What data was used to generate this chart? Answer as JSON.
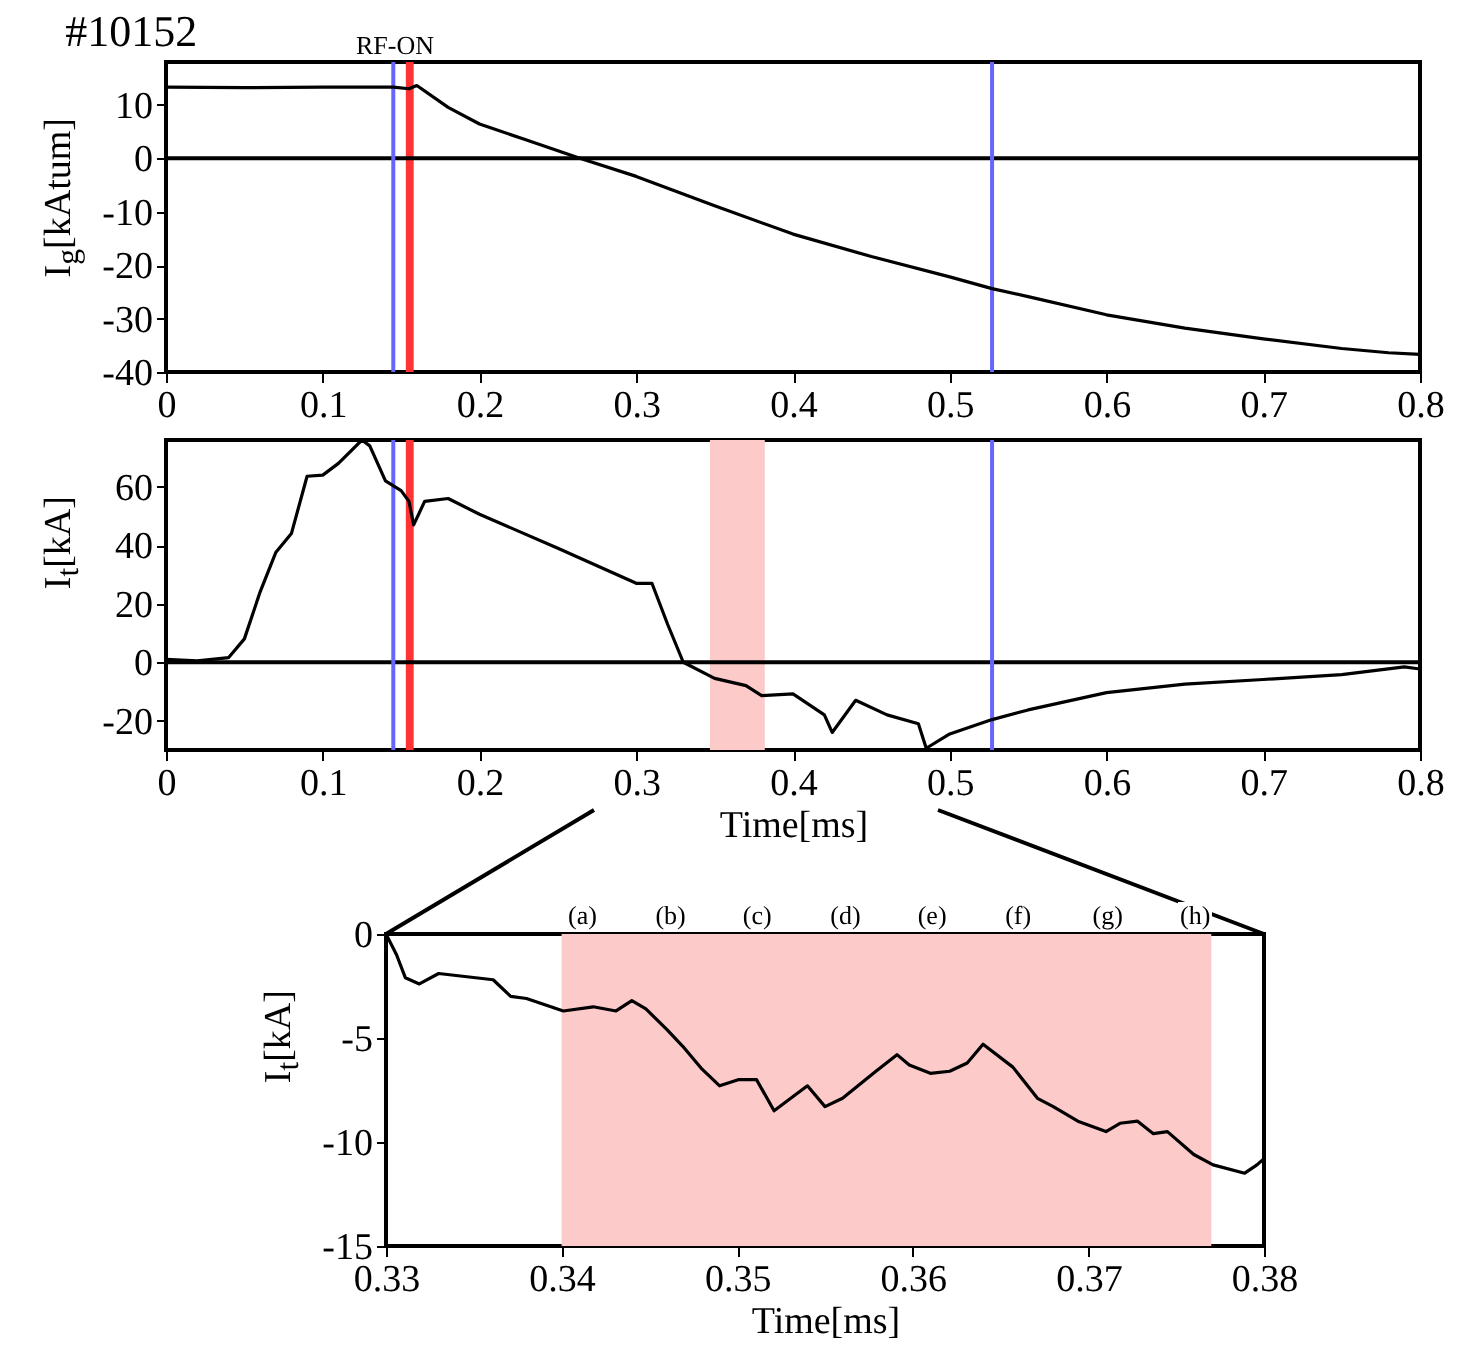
{
  "chart_data": [
    {
      "type": "line",
      "title": "#10152",
      "ylabel": "I$_{g}$[kAtum]",
      "xlim": [
        0,
        0.8
      ],
      "ylim": [
        -40,
        18
      ],
      "xticks": [
        0,
        0.1,
        0.2,
        0.3,
        0.4,
        0.5,
        0.6,
        0.7,
        0.8
      ],
      "yticks": [
        -40,
        -30,
        -20,
        -10,
        0,
        10
      ],
      "series": [
        {
          "color": "#000000",
          "x": [
            0,
            0.05,
            0.1,
            0.145,
            0.155,
            0.16,
            0.18,
            0.2,
            0.23,
            0.264,
            0.3,
            0.35,
            0.4,
            0.45,
            0.5,
            0.527,
            0.55,
            0.6,
            0.65,
            0.7,
            0.75,
            0.78,
            0.8
          ],
          "values": [
            13.3,
            13.2,
            13.3,
            13.3,
            13.0,
            13.6,
            9.5,
            6.4,
            3.4,
            0,
            -3.4,
            -8.9,
            -14.2,
            -18.4,
            -22.2,
            -24.4,
            -25.9,
            -29.3,
            -31.8,
            -33.8,
            -35.6,
            -36.4,
            -36.7
          ]
        }
      ],
      "ref_lines": [
        {
          "axis": "y",
          "value": 0,
          "color": "#000000"
        },
        {
          "axis": "x",
          "value": 0.145,
          "color": "#6666ff"
        },
        {
          "axis": "x",
          "value": 0.527,
          "color": "#6666ff"
        }
      ],
      "bands": [
        {
          "axis": "x",
          "from": 0.153,
          "to": 0.158,
          "color": "#ff3333"
        }
      ],
      "annotations": [
        "RF-ON"
      ]
    },
    {
      "type": "line",
      "xlabel": "Time[ms]",
      "ylabel": "I$_{t}$[kA]",
      "xlim": [
        0,
        0.8
      ],
      "ylim": [
        -30,
        76
      ],
      "xticks": [
        0,
        0.1,
        0.2,
        0.3,
        0.4,
        0.5,
        0.6,
        0.7,
        0.8
      ],
      "yticks": [
        -20,
        0,
        20,
        40,
        60
      ],
      "series": [
        {
          "color": "#000000",
          "x": [
            0,
            0.02,
            0.04,
            0.05,
            0.06,
            0.07,
            0.08,
            0.09,
            0.1,
            0.11,
            0.125,
            0.13,
            0.14,
            0.15,
            0.155,
            0.158,
            0.165,
            0.18,
            0.2,
            0.25,
            0.3,
            0.31,
            0.32,
            0.33,
            0.35,
            0.37,
            0.38,
            0.4,
            0.42,
            0.425,
            0.44,
            0.46,
            0.48,
            0.485,
            0.5,
            0.527,
            0.55,
            0.6,
            0.65,
            0.7,
            0.75,
            0.79,
            0.8
          ],
          "values": [
            1,
            0.5,
            1.6,
            8,
            24,
            37.5,
            44,
            63.6,
            64,
            68,
            76,
            74,
            62,
            58.7,
            55,
            47,
            55,
            56,
            50.6,
            39,
            27,
            27,
            13,
            0,
            -5.5,
            -8,
            -11.4,
            -10.8,
            -18,
            -24,
            -13,
            -18,
            -21,
            -29.4,
            -24.5,
            -19.6,
            -16.3,
            -10.4,
            -7.5,
            -5.9,
            -4.2,
            -1.6,
            -2.3
          ]
        }
      ],
      "ref_lines": [
        {
          "axis": "y",
          "value": 0,
          "color": "#000000"
        },
        {
          "axis": "x",
          "value": 0.145,
          "color": "#6666ff"
        },
        {
          "axis": "x",
          "value": 0.527,
          "color": "#6666ff"
        }
      ],
      "bands": [
        {
          "axis": "x",
          "from": 0.153,
          "to": 0.158,
          "color": "#ff3333"
        },
        {
          "axis": "x",
          "from": 0.347,
          "to": 0.382,
          "color": "#fdcaca"
        }
      ]
    },
    {
      "type": "line",
      "xlabel": "Time[ms]",
      "ylabel": "I$_{t}$[kA]",
      "xlim": [
        0.33,
        0.38
      ],
      "ylim": [
        -15,
        0
      ],
      "xticks": [
        0.33,
        0.34,
        0.35,
        0.36,
        0.37,
        0.38
      ],
      "yticks": [
        -15,
        -10,
        -5,
        0
      ],
      "series": [
        {
          "color": "#000000",
          "x": [
            0.33,
            0.3306,
            0.3311,
            0.3319,
            0.333,
            0.3361,
            0.3371,
            0.338,
            0.3401,
            0.3418,
            0.3431,
            0.344,
            0.3448,
            0.346,
            0.3469,
            0.348,
            0.349,
            0.3501,
            0.3511,
            0.3521,
            0.354,
            0.355,
            0.356,
            0.3579,
            0.3591,
            0.3598,
            0.361,
            0.3621,
            0.3631,
            0.364,
            0.3657,
            0.3671,
            0.368,
            0.3694,
            0.371,
            0.3718,
            0.3728,
            0.3737,
            0.3745,
            0.376,
            0.3771,
            0.3789,
            0.3796,
            0.38
          ],
          "values": [
            0,
            -1,
            -2.1,
            -2.4,
            -1.9,
            -2.2,
            -3,
            -3.1,
            -3.7,
            -3.5,
            -3.7,
            -3.2,
            -3.6,
            -4.6,
            -5.4,
            -6.5,
            -7.3,
            -7,
            -7,
            -8.5,
            -7.3,
            -8.3,
            -7.9,
            -6.6,
            -5.8,
            -6.3,
            -6.7,
            -6.6,
            -6.2,
            -5.3,
            -6.4,
            -7.9,
            -8.3,
            -9,
            -9.5,
            -9.1,
            -9,
            -9.6,
            -9.5,
            -10.6,
            -11.1,
            -11.5,
            -11.1,
            -10.8
          ]
        }
      ],
      "bands": [
        {
          "axis": "x",
          "from": 0.34,
          "to": 0.377,
          "color": "#fdcaca"
        }
      ],
      "annotations": [
        "(a)",
        "(b)",
        "(c)",
        "(d)",
        "(e)",
        "(f)",
        "(g)",
        "(h)"
      ]
    }
  ]
}
